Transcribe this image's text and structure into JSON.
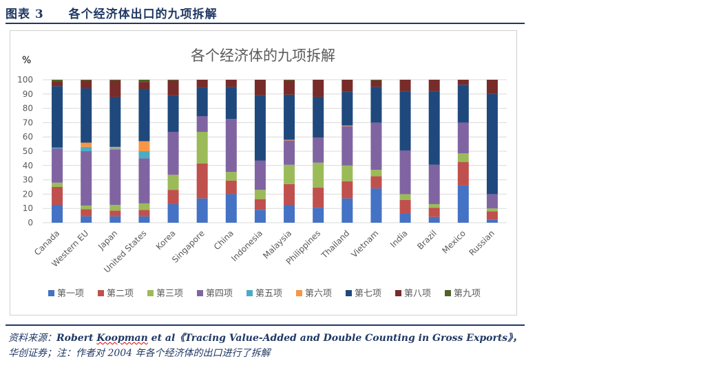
{
  "figure": {
    "label": "图表 3",
    "caption": "各个经济体出口的九项拆解"
  },
  "source": {
    "prefix": "资料来源：",
    "author_a": "Robert ",
    "author_b": "Koopman",
    "author_c": " et al",
    "work": "《Tracing Value-Added and Double Counting in Gross Exports》",
    "suffix": "，",
    "line2": "华创证券；注：作者对 2004 年各个经济体的出口进行了拆解"
  },
  "colors": {
    "series": [
      "#4472c4",
      "#c0504d",
      "#9bbb59",
      "#8064a2",
      "#4bacc6",
      "#f79646",
      "#1f497d",
      "#772c2a",
      "#4f6228"
    ],
    "grid": "#d9d9d9",
    "text": "#595959"
  },
  "chart_data": {
    "type": "stacked-bar",
    "title": "各个经济体的九项拆解",
    "ylabel": "%",
    "xlabel": "",
    "ylim": [
      0,
      100
    ],
    "yticks": [
      0,
      10,
      20,
      30,
      40,
      50,
      60,
      70,
      80,
      90,
      100
    ],
    "grid": true,
    "legend_position": "bottom",
    "categories": [
      "Canada",
      "Western EU",
      "Japan",
      "United States",
      "Korea",
      "Singapore",
      "China",
      "Indonesia",
      "Malaysia",
      "Philippines",
      "Thailand",
      "Vietnam",
      "India",
      "Brazil",
      "Mexico",
      "Russian"
    ],
    "series": [
      {
        "name": "第一项",
        "values": [
          12.5,
          4.5,
          4.5,
          4.5,
          13,
          17,
          20,
          9,
          12.5,
          10.5,
          17,
          24,
          6.5,
          4,
          26,
          2
        ]
      },
      {
        "name": "第二项",
        "values": [
          12.5,
          5,
          4,
          4.5,
          10,
          24.5,
          9.5,
          7.5,
          14.5,
          14,
          12,
          8.5,
          9.5,
          6.5,
          16.5,
          6
        ]
      },
      {
        "name": "第三项",
        "values": [
          3,
          2.5,
          4,
          4.5,
          10.5,
          22,
          6,
          6.5,
          13.5,
          17.5,
          11,
          4.5,
          4,
          2.5,
          6,
          2
        ]
      },
      {
        "name": "第四项",
        "values": [
          24,
          38,
          38.5,
          31.5,
          30,
          11,
          37,
          20.5,
          17,
          17.5,
          27.5,
          33,
          30.5,
          27.5,
          21.5,
          10
        ]
      },
      {
        "name": "第五项",
        "values": [
          0.5,
          3,
          1,
          5,
          0,
          0,
          0,
          0,
          0,
          0,
          0,
          0,
          0,
          0,
          0,
          0
        ]
      },
      {
        "name": "第六项",
        "values": [
          0,
          3,
          1,
          7,
          0,
          0,
          0,
          0,
          0.5,
          0,
          0.5,
          0,
          0,
          0,
          0,
          0
        ]
      },
      {
        "name": "第七项",
        "values": [
          43,
          38,
          35,
          36.5,
          25.5,
          20,
          22.5,
          45.5,
          31.5,
          28.5,
          23.5,
          25,
          41.5,
          51.5,
          26.5,
          70
        ]
      },
      {
        "name": "第八项",
        "values": [
          3.5,
          5.5,
          11.5,
          5,
          10.5,
          5.5,
          5,
          11,
          10,
          12,
          8.5,
          4.5,
          8,
          8,
          3.5,
          10
        ]
      },
      {
        "name": "第九项",
        "values": [
          1,
          0.5,
          0.5,
          1.5,
          0.5,
          0,
          0,
          0,
          0.5,
          0,
          0,
          0.5,
          0,
          0,
          0,
          0
        ]
      }
    ]
  }
}
